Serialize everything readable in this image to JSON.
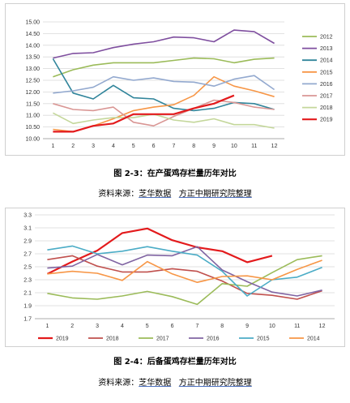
{
  "chart_data": [
    {
      "type": "line",
      "categories": [
        "1",
        "2",
        "3",
        "4",
        "5",
        "6",
        "7",
        "8",
        "9",
        "10",
        "11",
        "12"
      ],
      "yticks": [
        "10.00",
        "10.50",
        "11.00",
        "11.50",
        "12.00",
        "12.50",
        "13.00",
        "13.50",
        "14.00",
        "14.50",
        "15.00"
      ],
      "ylim": [
        10,
        15
      ],
      "legend_position": "right",
      "grid": true,
      "series": [
        {
          "name": "2012",
          "color": "#9bbb59",
          "values": [
            12.65,
            12.95,
            13.15,
            13.25,
            13.25,
            13.25,
            13.35,
            13.45,
            13.42,
            13.25,
            13.4,
            13.45
          ]
        },
        {
          "name": "2013",
          "color": "#7f4f9f",
          "values": [
            13.45,
            13.65,
            13.68,
            13.9,
            14.05,
            14.15,
            14.35,
            14.32,
            14.15,
            14.65,
            14.58,
            14.08
          ]
        },
        {
          "name": "2014",
          "color": "#31859b",
          "values": [
            13.42,
            11.95,
            11.7,
            12.28,
            11.75,
            11.7,
            11.3,
            11.2,
            11.3,
            11.55,
            11.5,
            11.25
          ]
        },
        {
          "name": "2015",
          "color": "#f79646",
          "values": [
            10.4,
            10.3,
            10.55,
            10.85,
            11.2,
            11.35,
            11.45,
            11.85,
            12.65,
            12.25,
            12.05,
            11.8
          ]
        },
        {
          "name": "2016",
          "color": "#93a9cf",
          "values": [
            11.95,
            12.05,
            12.2,
            12.65,
            12.5,
            12.6,
            12.45,
            12.42,
            12.25,
            12.55,
            12.7,
            12.1
          ]
        },
        {
          "name": "2017",
          "color": "#d99694",
          "values": [
            11.5,
            11.25,
            11.2,
            11.35,
            10.7,
            10.55,
            10.95,
            11.3,
            11.65,
            11.55,
            11.35,
            11.25
          ]
        },
        {
          "name": "2018",
          "color": "#c4d79b",
          "values": [
            11.1,
            10.65,
            10.8,
            10.9,
            10.9,
            11.05,
            10.8,
            10.7,
            10.85,
            10.6,
            10.6,
            10.45
          ]
        },
        {
          "name": "2019",
          "color": "#e31a1c",
          "values": [
            10.3,
            10.3,
            10.55,
            10.65,
            11.05,
            11.05,
            11.05,
            11.3,
            11.5,
            11.85,
            null,
            null
          ]
        }
      ]
    },
    {
      "type": "line",
      "categories": [
        "1",
        "2",
        "3",
        "4",
        "5",
        "6",
        "7",
        "8",
        "9",
        "10",
        "11",
        "12"
      ],
      "yticks": [
        "1.7",
        "1.9",
        "2.1",
        "2.3",
        "2.5",
        "2.7",
        "2.9",
        "3.1",
        "3.3"
      ],
      "ylim": [
        1.7,
        3.3
      ],
      "legend_position": "bottom",
      "grid": true,
      "series": [
        {
          "name": "2019",
          "color": "#e31a1c",
          "values": [
            2.39,
            2.58,
            2.75,
            3.02,
            3.09,
            2.91,
            2.8,
            2.74,
            2.57,
            2.67,
            null,
            null
          ]
        },
        {
          "name": "2018",
          "color": "#c0504d",
          "values": [
            2.61,
            2.67,
            2.51,
            2.42,
            2.42,
            2.47,
            2.43,
            2.28,
            2.09,
            2.06,
            2.0,
            2.13
          ]
        },
        {
          "name": "2017",
          "color": "#9bbb59",
          "values": [
            2.09,
            2.02,
            2.0,
            2.05,
            2.12,
            2.04,
            1.92,
            2.24,
            2.2,
            2.41,
            2.61,
            2.67
          ]
        },
        {
          "name": "2016",
          "color": "#8064a2",
          "values": [
            2.48,
            2.51,
            2.69,
            2.53,
            2.68,
            2.67,
            2.81,
            2.45,
            2.27,
            2.11,
            2.05,
            2.14
          ]
        },
        {
          "name": "2015",
          "color": "#4bacc6",
          "values": [
            2.76,
            2.82,
            2.7,
            2.74,
            2.81,
            2.74,
            2.68,
            2.43,
            2.05,
            2.3,
            2.34,
            2.49
          ]
        },
        {
          "name": "2014",
          "color": "#f79646",
          "values": [
            2.39,
            2.43,
            2.4,
            2.29,
            2.58,
            2.39,
            2.26,
            2.35,
            2.36,
            2.3,
            2.46,
            2.6
          ]
        }
      ]
    }
  ],
  "captions": {
    "fig1": "图 2-3：在产蛋鸡存栏量历年对比",
    "fig2": "图 2-4：后备蛋鸡存栏量历年对比"
  },
  "sources": {
    "fig1": {
      "prefix": "资料来源：",
      "a": "芝华数据",
      "b": "方正中期研究院整理"
    },
    "fig2": {
      "prefix": "资料来源：",
      "a": "芝华数据",
      "b": "方正中期研究院整理"
    }
  }
}
